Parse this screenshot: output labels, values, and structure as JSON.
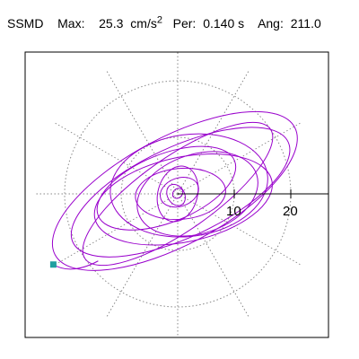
{
  "header": {
    "station": "SSMD",
    "max_label": "Max:",
    "max_value": "25.3",
    "max_unit": "cm/s",
    "max_unit_exp": "2",
    "per_label": "Per:",
    "per_value": "0.140 s",
    "ang_label": "Ang:",
    "ang_value": "211.0"
  },
  "chart_data": {
    "type": "line",
    "subtype": "particle-motion-polar",
    "grid": "dotted-polar",
    "radial_ticks": [
      10,
      20
    ],
    "radial_tick_labels": [
      "10",
      "20"
    ],
    "rlim": [
      0,
      25
    ],
    "spokes_deg": [
      0,
      30,
      60,
      90,
      120,
      150,
      180,
      210,
      240,
      270,
      300,
      330
    ],
    "start_marker_color": "#20A0A0",
    "trace_color": "#9900CC",
    "ellipses": [
      {
        "cx": -0.5,
        "cy": 0.5,
        "a": 24.0,
        "b": 9.5,
        "angle": 28
      },
      {
        "cx": 0.5,
        "cy": 0.3,
        "a": 21.0,
        "b": 8.0,
        "angle": 25
      },
      {
        "cx": 0.0,
        "cy": 0.0,
        "a": 20.0,
        "b": 6.5,
        "angle": 35
      },
      {
        "cx": 1.0,
        "cy": -1.0,
        "a": 16.0,
        "b": 7.5,
        "angle": 12
      },
      {
        "cx": 2.0,
        "cy": 1.5,
        "a": 14.0,
        "b": 9.0,
        "angle": 8
      },
      {
        "cx": 3.5,
        "cy": 0.0,
        "a": 11.0,
        "b": 7.0,
        "angle": 18
      },
      {
        "cx": -2.0,
        "cy": 1.0,
        "a": 13.0,
        "b": 6.0,
        "angle": 22
      },
      {
        "cx": 0.5,
        "cy": 0.0,
        "a": 8.0,
        "b": 4.5,
        "angle": 5
      },
      {
        "cx": 0.0,
        "cy": 0.0,
        "a": 5.0,
        "b": 3.5,
        "angle": 75
      },
      {
        "cx": 0.3,
        "cy": 0.3,
        "a": 3.5,
        "b": 2.5,
        "angle": 20
      },
      {
        "cx": -0.3,
        "cy": -0.2,
        "a": 2.0,
        "b": 1.5,
        "angle": 120
      },
      {
        "cx": 0.0,
        "cy": 0.1,
        "a": 1.0,
        "b": 0.8,
        "angle": 45
      }
    ],
    "start_point": {
      "x": -22.0,
      "y": -12.5
    }
  }
}
